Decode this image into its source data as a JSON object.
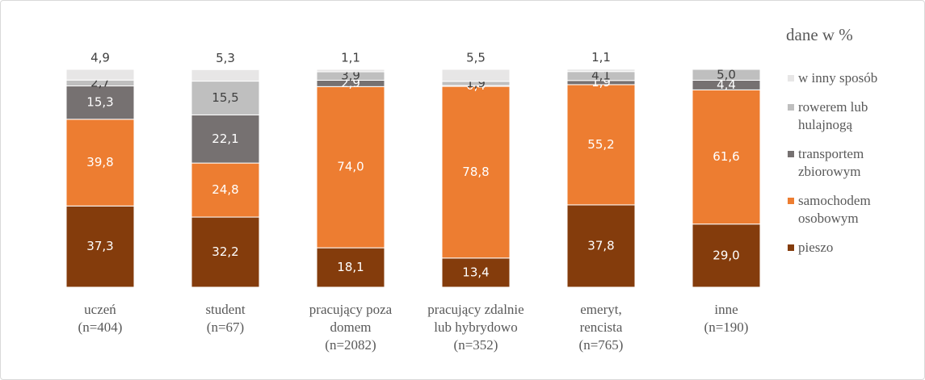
{
  "chart_data": {
    "type": "stacked_bar",
    "legend_title": "dane w %",
    "categories": [
      [
        "uczeń",
        "(n=404)"
      ],
      [
        "student",
        "(n=67)"
      ],
      [
        "pracujący poza",
        "domem",
        "(n=2082)"
      ],
      [
        "pracujący zdalnie",
        "lub hybrydowo",
        "(n=352)"
      ],
      [
        "emeryt,",
        "rencista",
        "(n=765)"
      ],
      [
        "inne",
        "(n=190)"
      ]
    ],
    "ylim": [
      0,
      100
    ],
    "legend": "right",
    "series": [
      {
        "name": "pieszo",
        "color": "#843c0c",
        "label_color": "#ffffff",
        "values": [
          37.3,
          32.2,
          18.1,
          13.4,
          37.8,
          29.0
        ],
        "value_labels": [
          "37,3",
          "32,2",
          "18,1",
          "13,4",
          "37,8",
          "29,0"
        ]
      },
      {
        "name": "samochodem osobowym",
        "color": "#ed7d31",
        "label_color": "#ffffff",
        "values": [
          39.8,
          24.8,
          74.0,
          78.8,
          55.2,
          61.6
        ],
        "value_labels": [
          "39,8",
          "24,8",
          "74,0",
          "78,8",
          "55,2",
          "61,6"
        ]
      },
      {
        "name": "transportem zbiorowym",
        "color": "#767171",
        "label_color": "#ffffff",
        "values": [
          15.3,
          22.1,
          2.9,
          0.4,
          1.9,
          4.4
        ],
        "value_labels": [
          "15,3",
          "22,1",
          "2,9",
          "0,4",
          "1,9",
          "4,4"
        ]
      },
      {
        "name": "rowerem lub hulajnogą",
        "color": "#bfbfbf",
        "label_color": "#404040",
        "values": [
          2.7,
          15.5,
          3.9,
          1.9,
          4.1,
          5.0
        ],
        "value_labels": [
          "2,7",
          "15,5",
          "3,9",
          "1,9",
          "4,1",
          "5,0"
        ]
      },
      {
        "name": "w inny sposób",
        "color": "#e7e6e6",
        "label_color": "#404040",
        "values": [
          4.9,
          5.3,
          1.1,
          5.5,
          1.1,
          null
        ],
        "value_labels": [
          "4,9",
          "5,3",
          "1,1",
          "5,5",
          "1,1",
          null
        ]
      }
    ]
  }
}
